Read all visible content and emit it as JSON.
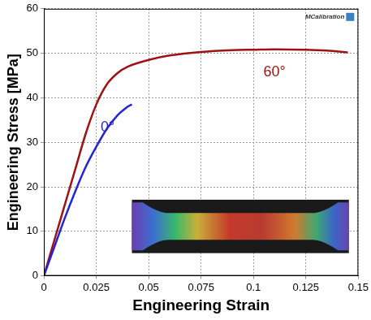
{
  "chart_data": {
    "type": "line",
    "x_label": "Engineering Strain",
    "y_label": "Engineering Stress [MPa]",
    "annotations": [
      {
        "text": "MCalibration"
      }
    ],
    "series": [
      {
        "name": "0°",
        "color": "#2424d6",
        "x": [
          0,
          0.005,
          0.01,
          0.015,
          0.02,
          0.025,
          0.03,
          0.035,
          0.04,
          0.042
        ],
        "values": [
          0,
          6.5,
          13,
          19,
          24.5,
          29,
          33,
          36,
          38,
          38.5
        ]
      },
      {
        "name": "60°",
        "color": "#a01212",
        "x": [
          0,
          0.005,
          0.01,
          0.015,
          0.02,
          0.025,
          0.03,
          0.035,
          0.04,
          0.05,
          0.06,
          0.075,
          0.09,
          0.1,
          0.11,
          0.125,
          0.135,
          0.145
        ],
        "values": [
          0,
          8,
          16,
          24,
          32,
          38.5,
          43,
          45.5,
          47,
          48.5,
          49.5,
          50.3,
          50.7,
          50.8,
          50.9,
          50.8,
          50.6,
          50.2
        ]
      }
    ],
    "xlim": [
      0,
      0.15
    ],
    "xticks": [
      0,
      0.025,
      0.05,
      0.075,
      0.1,
      0.125,
      0.15
    ],
    "ylim": [
      0,
      60
    ],
    "yticks": [
      0,
      10,
      20,
      30,
      40,
      50,
      60
    ],
    "grid": true
  }
}
